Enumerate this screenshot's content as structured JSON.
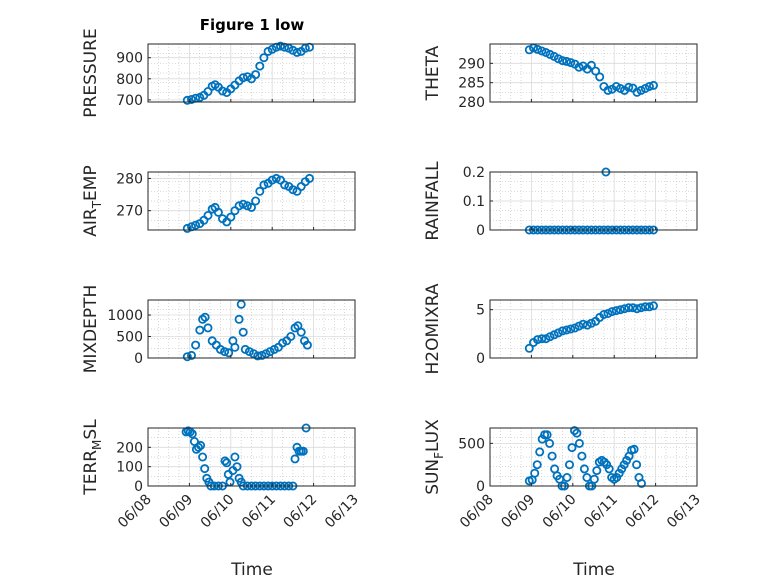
{
  "title": "Figure 1 low",
  "x_label": "Time",
  "x_ticks": [
    "06/08",
    "06/09",
    "06/10",
    "06/11",
    "06/12",
    "06/13"
  ],
  "colors": {
    "marker": "#0072BD",
    "axis": "#262626",
    "grid": "#c8c8c8"
  },
  "chart_data": [
    {
      "type": "scatter",
      "name_label": "PRESSURE",
      "grid": true,
      "ylim": [
        690,
        965
      ],
      "yticks": [
        700,
        800,
        900
      ],
      "xlim": [
        0,
        5
      ],
      "points": [
        [
          0.95,
          698
        ],
        [
          1.05,
          702
        ],
        [
          1.15,
          708
        ],
        [
          1.25,
          712
        ],
        [
          1.35,
          722
        ],
        [
          1.45,
          740
        ],
        [
          1.55,
          765
        ],
        [
          1.62,
          772
        ],
        [
          1.7,
          760
        ],
        [
          1.8,
          742
        ],
        [
          1.9,
          735
        ],
        [
          2.0,
          752
        ],
        [
          2.1,
          770
        ],
        [
          2.2,
          790
        ],
        [
          2.3,
          805
        ],
        [
          2.4,
          810
        ],
        [
          2.5,
          800
        ],
        [
          2.6,
          820
        ],
        [
          2.7,
          860
        ],
        [
          2.8,
          900
        ],
        [
          2.9,
          930
        ],
        [
          3.0,
          940
        ],
        [
          3.1,
          950
        ],
        [
          3.2,
          955
        ],
        [
          3.3,
          950
        ],
        [
          3.4,
          945
        ],
        [
          3.5,
          935
        ],
        [
          3.6,
          925
        ],
        [
          3.7,
          930
        ],
        [
          3.8,
          945
        ],
        [
          3.9,
          950
        ]
      ]
    },
    {
      "type": "scatter",
      "name_label": "THETA",
      "grid": true,
      "ylim": [
        280,
        295
      ],
      "yticks": [
        280,
        285,
        290
      ],
      "xlim": [
        0,
        5
      ],
      "points": [
        [
          0.95,
          293.5
        ],
        [
          1.05,
          294
        ],
        [
          1.15,
          293.6
        ],
        [
          1.25,
          293.2
        ],
        [
          1.35,
          292.8
        ],
        [
          1.45,
          292.3
        ],
        [
          1.55,
          291.8
        ],
        [
          1.65,
          291.2
        ],
        [
          1.75,
          290.7
        ],
        [
          1.85,
          290.5
        ],
        [
          1.95,
          290.2
        ],
        [
          2.05,
          289.8
        ],
        [
          2.15,
          289.0
        ],
        [
          2.25,
          289.3
        ],
        [
          2.35,
          288.5
        ],
        [
          2.45,
          289.5
        ],
        [
          2.55,
          288.0
        ],
        [
          2.65,
          286.5
        ],
        [
          2.75,
          284.0
        ],
        [
          2.85,
          283.0
        ],
        [
          2.95,
          283.3
        ],
        [
          3.05,
          284.0
        ],
        [
          3.15,
          283.5
        ],
        [
          3.25,
          283.0
        ],
        [
          3.35,
          283.8
        ],
        [
          3.45,
          283.6
        ],
        [
          3.55,
          282.5
        ],
        [
          3.65,
          283.0
        ],
        [
          3.75,
          283.5
        ],
        [
          3.85,
          284.0
        ],
        [
          3.95,
          284.3
        ]
      ]
    },
    {
      "type": "scatter",
      "name_label": "AIR_TEMP",
      "grid": true,
      "ylim": [
        264,
        282
      ],
      "yticks": [
        270,
        280
      ],
      "xlim": [
        0,
        5
      ],
      "points": [
        [
          0.95,
          264.5
        ],
        [
          1.05,
          265
        ],
        [
          1.15,
          265.5
        ],
        [
          1.25,
          266
        ],
        [
          1.35,
          267
        ],
        [
          1.45,
          268.5
        ],
        [
          1.55,
          270.5
        ],
        [
          1.62,
          271
        ],
        [
          1.7,
          269.5
        ],
        [
          1.8,
          267.5
        ],
        [
          1.9,
          266.5
        ],
        [
          2.0,
          268
        ],
        [
          2.1,
          270
        ],
        [
          2.2,
          271.5
        ],
        [
          2.3,
          272
        ],
        [
          2.4,
          271.5
        ],
        [
          2.5,
          271
        ],
        [
          2.6,
          273
        ],
        [
          2.7,
          276
        ],
        [
          2.8,
          278
        ],
        [
          2.9,
          278.5
        ],
        [
          3.0,
          279.5
        ],
        [
          3.1,
          280
        ],
        [
          3.2,
          279.5
        ],
        [
          3.3,
          278
        ],
        [
          3.4,
          277.5
        ],
        [
          3.5,
          276.5
        ],
        [
          3.6,
          276
        ],
        [
          3.7,
          277.5
        ],
        [
          3.8,
          279
        ],
        [
          3.9,
          280
        ]
      ]
    },
    {
      "type": "scatter",
      "name_label": "RAINFALL",
      "grid": true,
      "ylim": [
        0,
        0.2
      ],
      "yticks": [
        0,
        0.1,
        0.2
      ],
      "xlim": [
        0,
        5
      ],
      "points": [
        [
          0.95,
          0
        ],
        [
          1.05,
          0
        ],
        [
          1.15,
          0
        ],
        [
          1.25,
          0
        ],
        [
          1.35,
          0
        ],
        [
          1.45,
          0
        ],
        [
          1.55,
          0
        ],
        [
          1.65,
          0
        ],
        [
          1.75,
          0
        ],
        [
          1.85,
          0
        ],
        [
          1.95,
          0
        ],
        [
          2.05,
          0
        ],
        [
          2.15,
          0
        ],
        [
          2.25,
          0
        ],
        [
          2.35,
          0
        ],
        [
          2.45,
          0
        ],
        [
          2.55,
          0
        ],
        [
          2.65,
          0
        ],
        [
          2.75,
          0
        ],
        [
          2.8,
          0.2
        ],
        [
          2.85,
          0
        ],
        [
          2.95,
          0
        ],
        [
          3.05,
          0
        ],
        [
          3.15,
          0
        ],
        [
          3.25,
          0
        ],
        [
          3.35,
          0
        ],
        [
          3.45,
          0
        ],
        [
          3.55,
          0
        ],
        [
          3.65,
          0
        ],
        [
          3.75,
          0
        ],
        [
          3.85,
          0
        ],
        [
          3.95,
          0
        ]
      ]
    },
    {
      "type": "scatter",
      "name_label": "MIXDEPTH",
      "grid": true,
      "ylim": [
        0,
        1350
      ],
      "yticks": [
        0,
        500,
        1000
      ],
      "xlim": [
        0,
        5
      ],
      "points": [
        [
          0.95,
          30
        ],
        [
          1.05,
          60
        ],
        [
          1.15,
          300
        ],
        [
          1.25,
          650
        ],
        [
          1.32,
          900
        ],
        [
          1.38,
          950
        ],
        [
          1.45,
          700
        ],
        [
          1.55,
          400
        ],
        [
          1.65,
          300
        ],
        [
          1.75,
          200
        ],
        [
          1.85,
          150
        ],
        [
          1.95,
          120
        ],
        [
          2.05,
          400
        ],
        [
          2.1,
          250
        ],
        [
          2.2,
          900
        ],
        [
          2.25,
          1250
        ],
        [
          2.3,
          600
        ],
        [
          2.35,
          200
        ],
        [
          2.45,
          150
        ],
        [
          2.55,
          100
        ],
        [
          2.65,
          50
        ],
        [
          2.75,
          60
        ],
        [
          2.85,
          100
        ],
        [
          2.95,
          150
        ],
        [
          3.05,
          200
        ],
        [
          3.15,
          250
        ],
        [
          3.25,
          350
        ],
        [
          3.35,
          400
        ],
        [
          3.45,
          500
        ],
        [
          3.55,
          700
        ],
        [
          3.62,
          750
        ],
        [
          3.7,
          600
        ],
        [
          3.78,
          400
        ],
        [
          3.85,
          300
        ]
      ]
    },
    {
      "type": "scatter",
      "name_label": "H2OMIXRA",
      "grid": true,
      "ylim": [
        0,
        6
      ],
      "yticks": [
        0,
        5
      ],
      "xlim": [
        0,
        5
      ],
      "points": [
        [
          0.95,
          1.0
        ],
        [
          1.05,
          1.6
        ],
        [
          1.15,
          1.9
        ],
        [
          1.25,
          2.0
        ],
        [
          1.35,
          2.0
        ],
        [
          1.45,
          2.2
        ],
        [
          1.55,
          2.4
        ],
        [
          1.65,
          2.6
        ],
        [
          1.75,
          2.8
        ],
        [
          1.85,
          2.9
        ],
        [
          1.95,
          3.0
        ],
        [
          2.05,
          3.1
        ],
        [
          2.15,
          3.3
        ],
        [
          2.25,
          3.5
        ],
        [
          2.35,
          3.4
        ],
        [
          2.45,
          3.6
        ],
        [
          2.55,
          3.8
        ],
        [
          2.65,
          4.2
        ],
        [
          2.75,
          4.5
        ],
        [
          2.85,
          4.6
        ],
        [
          2.95,
          4.8
        ],
        [
          3.05,
          4.9
        ],
        [
          3.15,
          5.0
        ],
        [
          3.25,
          5.1
        ],
        [
          3.35,
          5.2
        ],
        [
          3.45,
          5.2
        ],
        [
          3.55,
          5.1
        ],
        [
          3.65,
          5.2
        ],
        [
          3.75,
          5.3
        ],
        [
          3.85,
          5.3
        ],
        [
          3.95,
          5.4
        ]
      ]
    },
    {
      "type": "scatter",
      "name_label": "TERR_MSL",
      "grid": true,
      "ylim": [
        0,
        300
      ],
      "yticks": [
        0,
        100,
        200
      ],
      "xlim": [
        0,
        5
      ],
      "points": [
        [
          0.92,
          280
        ],
        [
          0.97,
          285
        ],
        [
          1.02,
          280
        ],
        [
          1.07,
          270
        ],
        [
          1.12,
          230
        ],
        [
          1.17,
          190
        ],
        [
          1.22,
          200
        ],
        [
          1.27,
          210
        ],
        [
          1.32,
          150
        ],
        [
          1.37,
          90
        ],
        [
          1.42,
          40
        ],
        [
          1.47,
          20
        ],
        [
          1.52,
          0
        ],
        [
          1.6,
          0
        ],
        [
          1.7,
          0
        ],
        [
          1.8,
          0
        ],
        [
          1.86,
          130
        ],
        [
          1.9,
          120
        ],
        [
          1.94,
          60
        ],
        [
          1.98,
          20
        ],
        [
          2.05,
          80
        ],
        [
          2.1,
          150
        ],
        [
          2.15,
          100
        ],
        [
          2.2,
          40
        ],
        [
          2.25,
          20
        ],
        [
          2.3,
          0
        ],
        [
          2.4,
          0
        ],
        [
          2.5,
          0
        ],
        [
          2.6,
          0
        ],
        [
          2.7,
          0
        ],
        [
          2.8,
          0
        ],
        [
          2.9,
          0
        ],
        [
          3.0,
          0
        ],
        [
          3.1,
          0
        ],
        [
          3.2,
          0
        ],
        [
          3.3,
          0
        ],
        [
          3.4,
          0
        ],
        [
          3.5,
          0
        ],
        [
          3.55,
          140
        ],
        [
          3.6,
          200
        ],
        [
          3.65,
          180
        ],
        [
          3.7,
          180
        ],
        [
          3.75,
          180
        ],
        [
          3.82,
          300
        ]
      ]
    },
    {
      "type": "scatter",
      "name_label": "SUN_FLUX",
      "grid": true,
      "ylim": [
        0,
        680
      ],
      "yticks": [
        0,
        500
      ],
      "xlim": [
        0,
        5
      ],
      "points": [
        [
          0.95,
          60
        ],
        [
          1.02,
          70
        ],
        [
          1.08,
          150
        ],
        [
          1.14,
          250
        ],
        [
          1.2,
          400
        ],
        [
          1.26,
          550
        ],
        [
          1.32,
          600
        ],
        [
          1.38,
          600
        ],
        [
          1.44,
          500
        ],
        [
          1.5,
          350
        ],
        [
          1.56,
          200
        ],
        [
          1.62,
          120
        ],
        [
          1.68,
          80
        ],
        [
          1.74,
          0
        ],
        [
          1.8,
          0
        ],
        [
          1.86,
          100
        ],
        [
          1.92,
          250
        ],
        [
          1.98,
          450
        ],
        [
          2.04,
          650
        ],
        [
          2.1,
          620
        ],
        [
          2.16,
          500
        ],
        [
          2.22,
          350
        ],
        [
          2.28,
          200
        ],
        [
          2.34,
          100
        ],
        [
          2.4,
          0
        ],
        [
          2.46,
          0
        ],
        [
          2.52,
          80
        ],
        [
          2.58,
          180
        ],
        [
          2.64,
          280
        ],
        [
          2.7,
          300
        ],
        [
          2.76,
          280
        ],
        [
          2.82,
          250
        ],
        [
          2.88,
          200
        ],
        [
          2.94,
          100
        ],
        [
          3.0,
          80
        ],
        [
          3.06,
          100
        ],
        [
          3.12,
          150
        ],
        [
          3.18,
          200
        ],
        [
          3.24,
          250
        ],
        [
          3.3,
          300
        ],
        [
          3.36,
          350
        ],
        [
          3.42,
          420
        ],
        [
          3.48,
          430
        ],
        [
          3.54,
          250
        ],
        [
          3.6,
          100
        ],
        [
          3.66,
          30
        ]
      ]
    }
  ]
}
